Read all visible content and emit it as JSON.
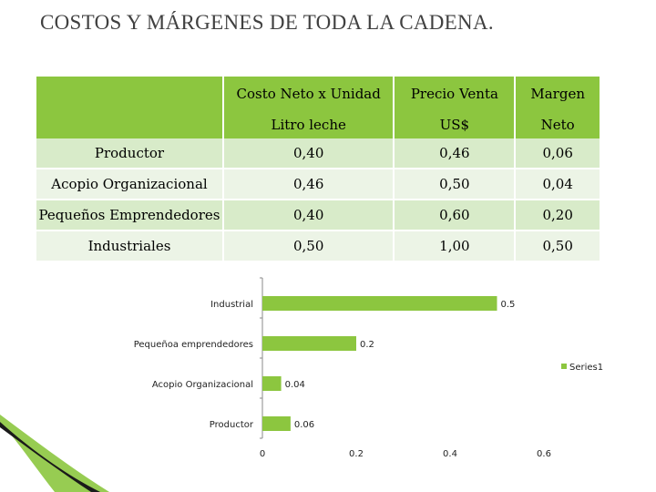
{
  "title": "COSTOS Y MÁRGENES DE TODA LA CADENA.",
  "table": {
    "header_row1": [
      "",
      "Costo Neto x Unidad",
      "Precio Venta",
      "Margen"
    ],
    "header_row2": [
      "",
      "Litro leche",
      "US$",
      "Neto"
    ],
    "rows": [
      [
        "Productor",
        "0,40",
        "0,46",
        "0,06"
      ],
      [
        "Acopio Organizacional",
        "0,46",
        "0,50",
        "0,04"
      ],
      [
        "Pequeños Emprendedores",
        "0,40",
        "0,60",
        "0,20"
      ],
      [
        "Industriales",
        "0,50",
        "1,00",
        "0,50"
      ]
    ]
  },
  "chart_data": {
    "type": "bar",
    "orientation": "horizontal",
    "categories": [
      "Productor",
      "Acopio Organizacional",
      "Pequeñoa emprendedores",
      "Industrial"
    ],
    "series": [
      {
        "name": "Series1",
        "values": [
          0.06,
          0.04,
          0.2,
          0.5
        ],
        "color": "#8cc63f"
      }
    ],
    "data_labels": [
      "0.06",
      "0.04",
      "0.2",
      "0.5"
    ],
    "xlim": [
      0,
      0.6
    ],
    "xticks": [
      0,
      0.2,
      0.4,
      0.6
    ],
    "xtick_labels": [
      "0",
      "0.2",
      "0.4",
      "0.6"
    ],
    "legend_position": "right",
    "grid": false
  },
  "colors": {
    "header": "#8cc63f",
    "row_dark": "#d8ebc9",
    "row_light": "#ecf4e6",
    "bar": "#8cc63f"
  }
}
